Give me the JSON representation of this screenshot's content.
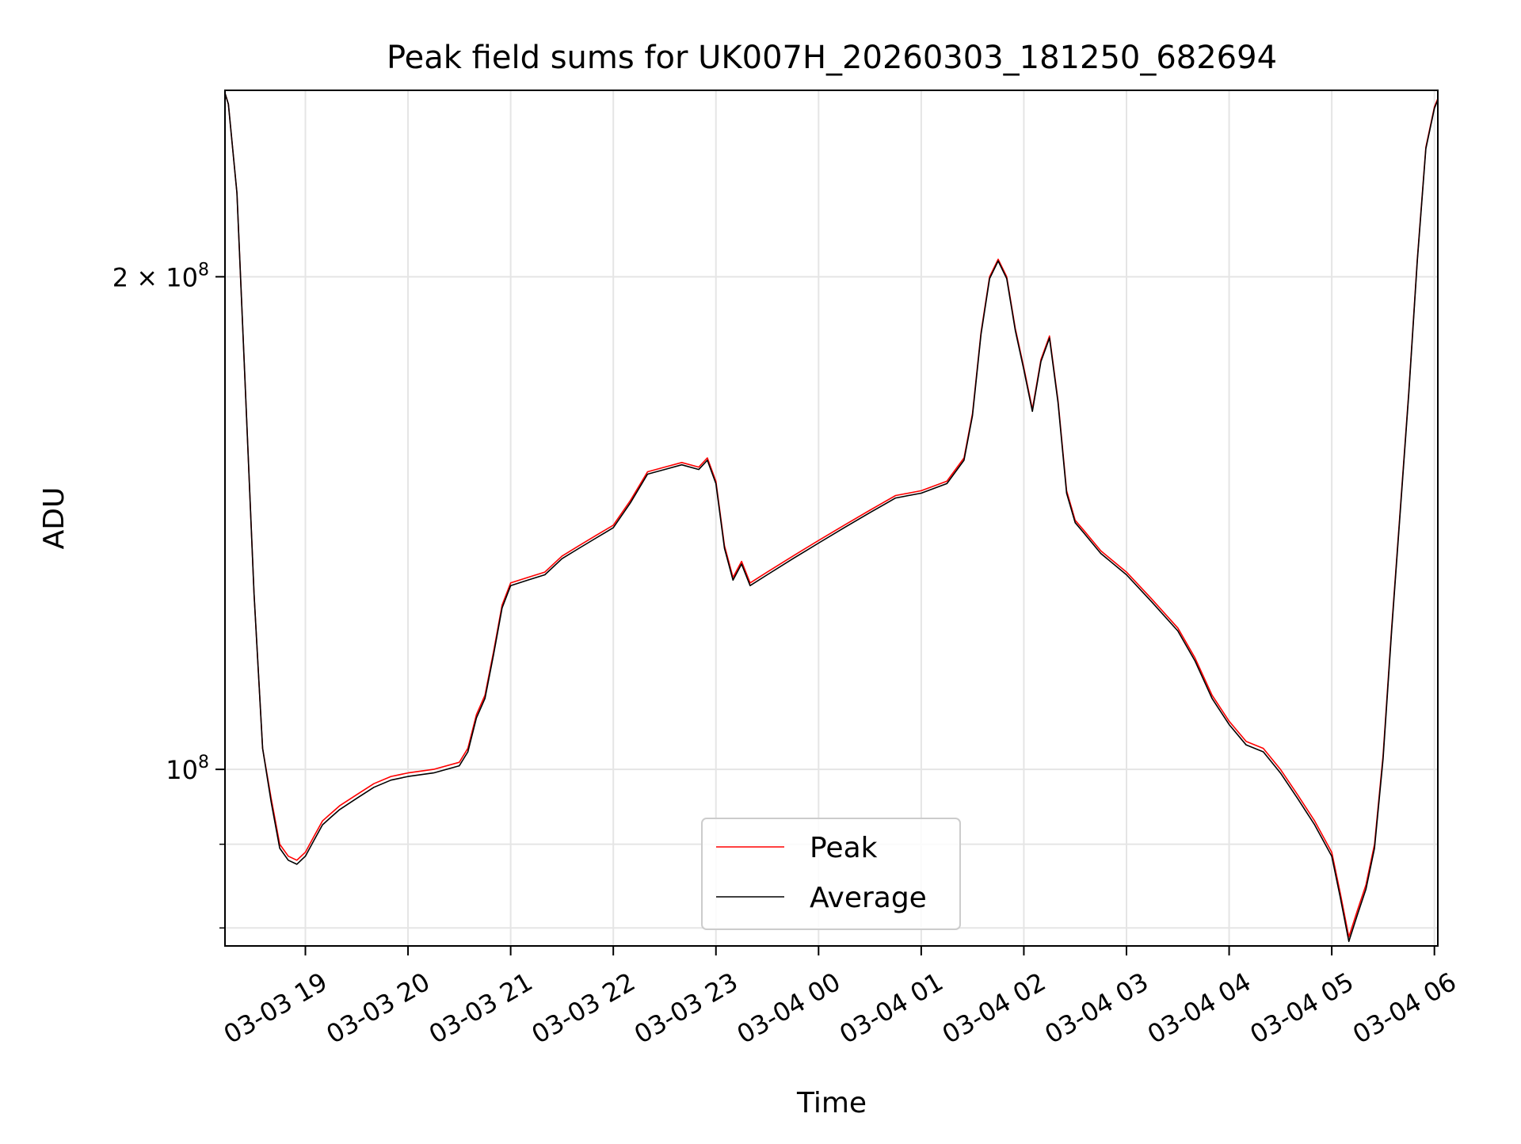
{
  "chart_data": {
    "type": "line",
    "title": "Peak field sums for UK007H_20260303_181250_682694",
    "xlabel": "Time",
    "ylabel": "ADU",
    "yscale": "log",
    "ylim": [
      78000000,
      260000000
    ],
    "xlim": [
      "2026-03-03 18:13",
      "2026-03-04 06:02"
    ],
    "grid": true,
    "legend_position": "lower center",
    "x_tick_labels": [
      "03-03 19",
      "03-03 20",
      "03-03 21",
      "03-03 22",
      "03-03 23",
      "03-04 00",
      "03-04 01",
      "03-04 02",
      "03-04 03",
      "03-04 04",
      "03-04 05",
      "03-04 06"
    ],
    "y_tick_labels": [
      {
        "value": 200000000,
        "base": "2 × 10",
        "exp": "8"
      },
      {
        "value": 100000000,
        "base": "10",
        "exp": "8"
      }
    ],
    "x": [
      "2026-03-03 18:13",
      "2026-03-03 18:15",
      "2026-03-03 18:20",
      "2026-03-03 18:25",
      "2026-03-03 18:30",
      "2026-03-03 18:35",
      "2026-03-03 18:40",
      "2026-03-03 18:45",
      "2026-03-03 18:50",
      "2026-03-03 18:55",
      "2026-03-03 19:00",
      "2026-03-03 19:05",
      "2026-03-03 19:10",
      "2026-03-03 19:15",
      "2026-03-03 19:20",
      "2026-03-03 19:30",
      "2026-03-03 19:40",
      "2026-03-03 19:50",
      "2026-03-03 20:00",
      "2026-03-03 20:15",
      "2026-03-03 20:30",
      "2026-03-03 20:35",
      "2026-03-03 20:40",
      "2026-03-03 20:45",
      "2026-03-03 20:50",
      "2026-03-03 20:55",
      "2026-03-03 21:00",
      "2026-03-03 21:10",
      "2026-03-03 21:20",
      "2026-03-03 21:30",
      "2026-03-03 21:40",
      "2026-03-03 21:50",
      "2026-03-03 22:00",
      "2026-03-03 22:10",
      "2026-03-03 22:20",
      "2026-03-03 22:30",
      "2026-03-03 22:40",
      "2026-03-03 22:50",
      "2026-03-03 22:55",
      "2026-03-03 23:00",
      "2026-03-03 23:05",
      "2026-03-03 23:10",
      "2026-03-03 23:15",
      "2026-03-03 23:20",
      "2026-03-03 23:30",
      "2026-03-03 23:45",
      "2026-03-04 00:00",
      "2026-03-04 00:15",
      "2026-03-04 00:30",
      "2026-03-04 00:45",
      "2026-03-04 01:00",
      "2026-03-04 01:15",
      "2026-03-04 01:25",
      "2026-03-04 01:30",
      "2026-03-04 01:35",
      "2026-03-04 01:40",
      "2026-03-04 01:45",
      "2026-03-04 01:50",
      "2026-03-04 01:55",
      "2026-03-04 02:00",
      "2026-03-04 02:05",
      "2026-03-04 02:10",
      "2026-03-04 02:15",
      "2026-03-04 02:20",
      "2026-03-04 02:25",
      "2026-03-04 02:30",
      "2026-03-04 02:35",
      "2026-03-04 02:45",
      "2026-03-04 03:00",
      "2026-03-04 03:15",
      "2026-03-04 03:30",
      "2026-03-04 03:40",
      "2026-03-04 03:50",
      "2026-03-04 04:00",
      "2026-03-04 04:10",
      "2026-03-04 04:20",
      "2026-03-04 04:30",
      "2026-03-04 04:40",
      "2026-03-04 04:50",
      "2026-03-04 05:00",
      "2026-03-04 05:05",
      "2026-03-04 05:10",
      "2026-03-04 05:15",
      "2026-03-04 05:20",
      "2026-03-04 05:25",
      "2026-03-04 05:30",
      "2026-03-04 05:35",
      "2026-03-04 05:40",
      "2026-03-04 05:45",
      "2026-03-04 05:50",
      "2026-03-04 05:55",
      "2026-03-04 06:00",
      "2026-03-04 06:02"
    ],
    "series": [
      {
        "name": "Peak",
        "color": "#ff0000",
        "values": [
          259000000,
          255000000,
          225000000,
          170000000,
          128000000,
          103000000,
          96000000,
          90000000,
          88500000,
          88000000,
          89000000,
          91000000,
          93000000,
          94000000,
          95000000,
          96500000,
          98000000,
          99000000,
          99500000,
          100000000,
          101000000,
          103000000,
          108000000,
          111000000,
          118000000,
          126000000,
          130000000,
          131000000,
          132000000,
          135000000,
          137000000,
          139000000,
          141000000,
          146000000,
          152000000,
          153000000,
          154000000,
          153000000,
          155000000,
          150000000,
          137000000,
          131000000,
          134000000,
          130000000,
          132000000,
          135000000,
          138000000,
          141000000,
          144000000,
          147000000,
          148000000,
          150000000,
          155000000,
          165000000,
          185000000,
          200000000,
          205000000,
          200000000,
          186000000,
          176000000,
          166000000,
          178000000,
          184000000,
          168000000,
          148000000,
          142000000,
          140000000,
          136000000,
          132000000,
          127000000,
          122000000,
          117000000,
          111000000,
          107000000,
          104000000,
          103000000,
          100000000,
          96500000,
          93000000,
          89000000,
          84000000,
          79000000,
          82000000,
          85000000,
          90000000,
          102000000,
          122000000,
          144000000,
          170000000,
          205000000,
          240000000,
          254000000,
          257000000
        ]
      },
      {
        "name": "Average",
        "color": "#000000",
        "values": [
          259000000,
          255000000,
          225000000,
          170000000,
          128000000,
          103000000,
          95500000,
          89500000,
          88000000,
          87500000,
          88500000,
          90500000,
          92500000,
          93500000,
          94500000,
          96000000,
          97500000,
          98500000,
          99000000,
          99500000,
          100500000,
          102500000,
          107500000,
          110500000,
          117500000,
          125500000,
          129500000,
          130500000,
          131500000,
          134500000,
          136500000,
          138500000,
          140500000,
          145500000,
          151500000,
          152500000,
          153500000,
          152500000,
          154500000,
          149500000,
          136500000,
          130500000,
          133500000,
          129500000,
          131500000,
          134500000,
          137500000,
          140500000,
          143500000,
          146500000,
          147500000,
          149500000,
          154500000,
          164500000,
          184500000,
          199500000,
          204500000,
          199500000,
          185500000,
          175500000,
          165500000,
          177500000,
          183500000,
          167500000,
          147500000,
          141500000,
          139500000,
          135500000,
          131500000,
          126500000,
          121500000,
          116500000,
          110500000,
          106500000,
          103500000,
          102500000,
          99500000,
          96000000,
          92500000,
          88500000,
          83500000,
          78500000,
          81500000,
          84500000,
          89500000,
          101500000,
          121500000,
          143500000,
          169500000,
          204500000,
          239500000,
          253500000,
          256500000
        ]
      }
    ]
  }
}
